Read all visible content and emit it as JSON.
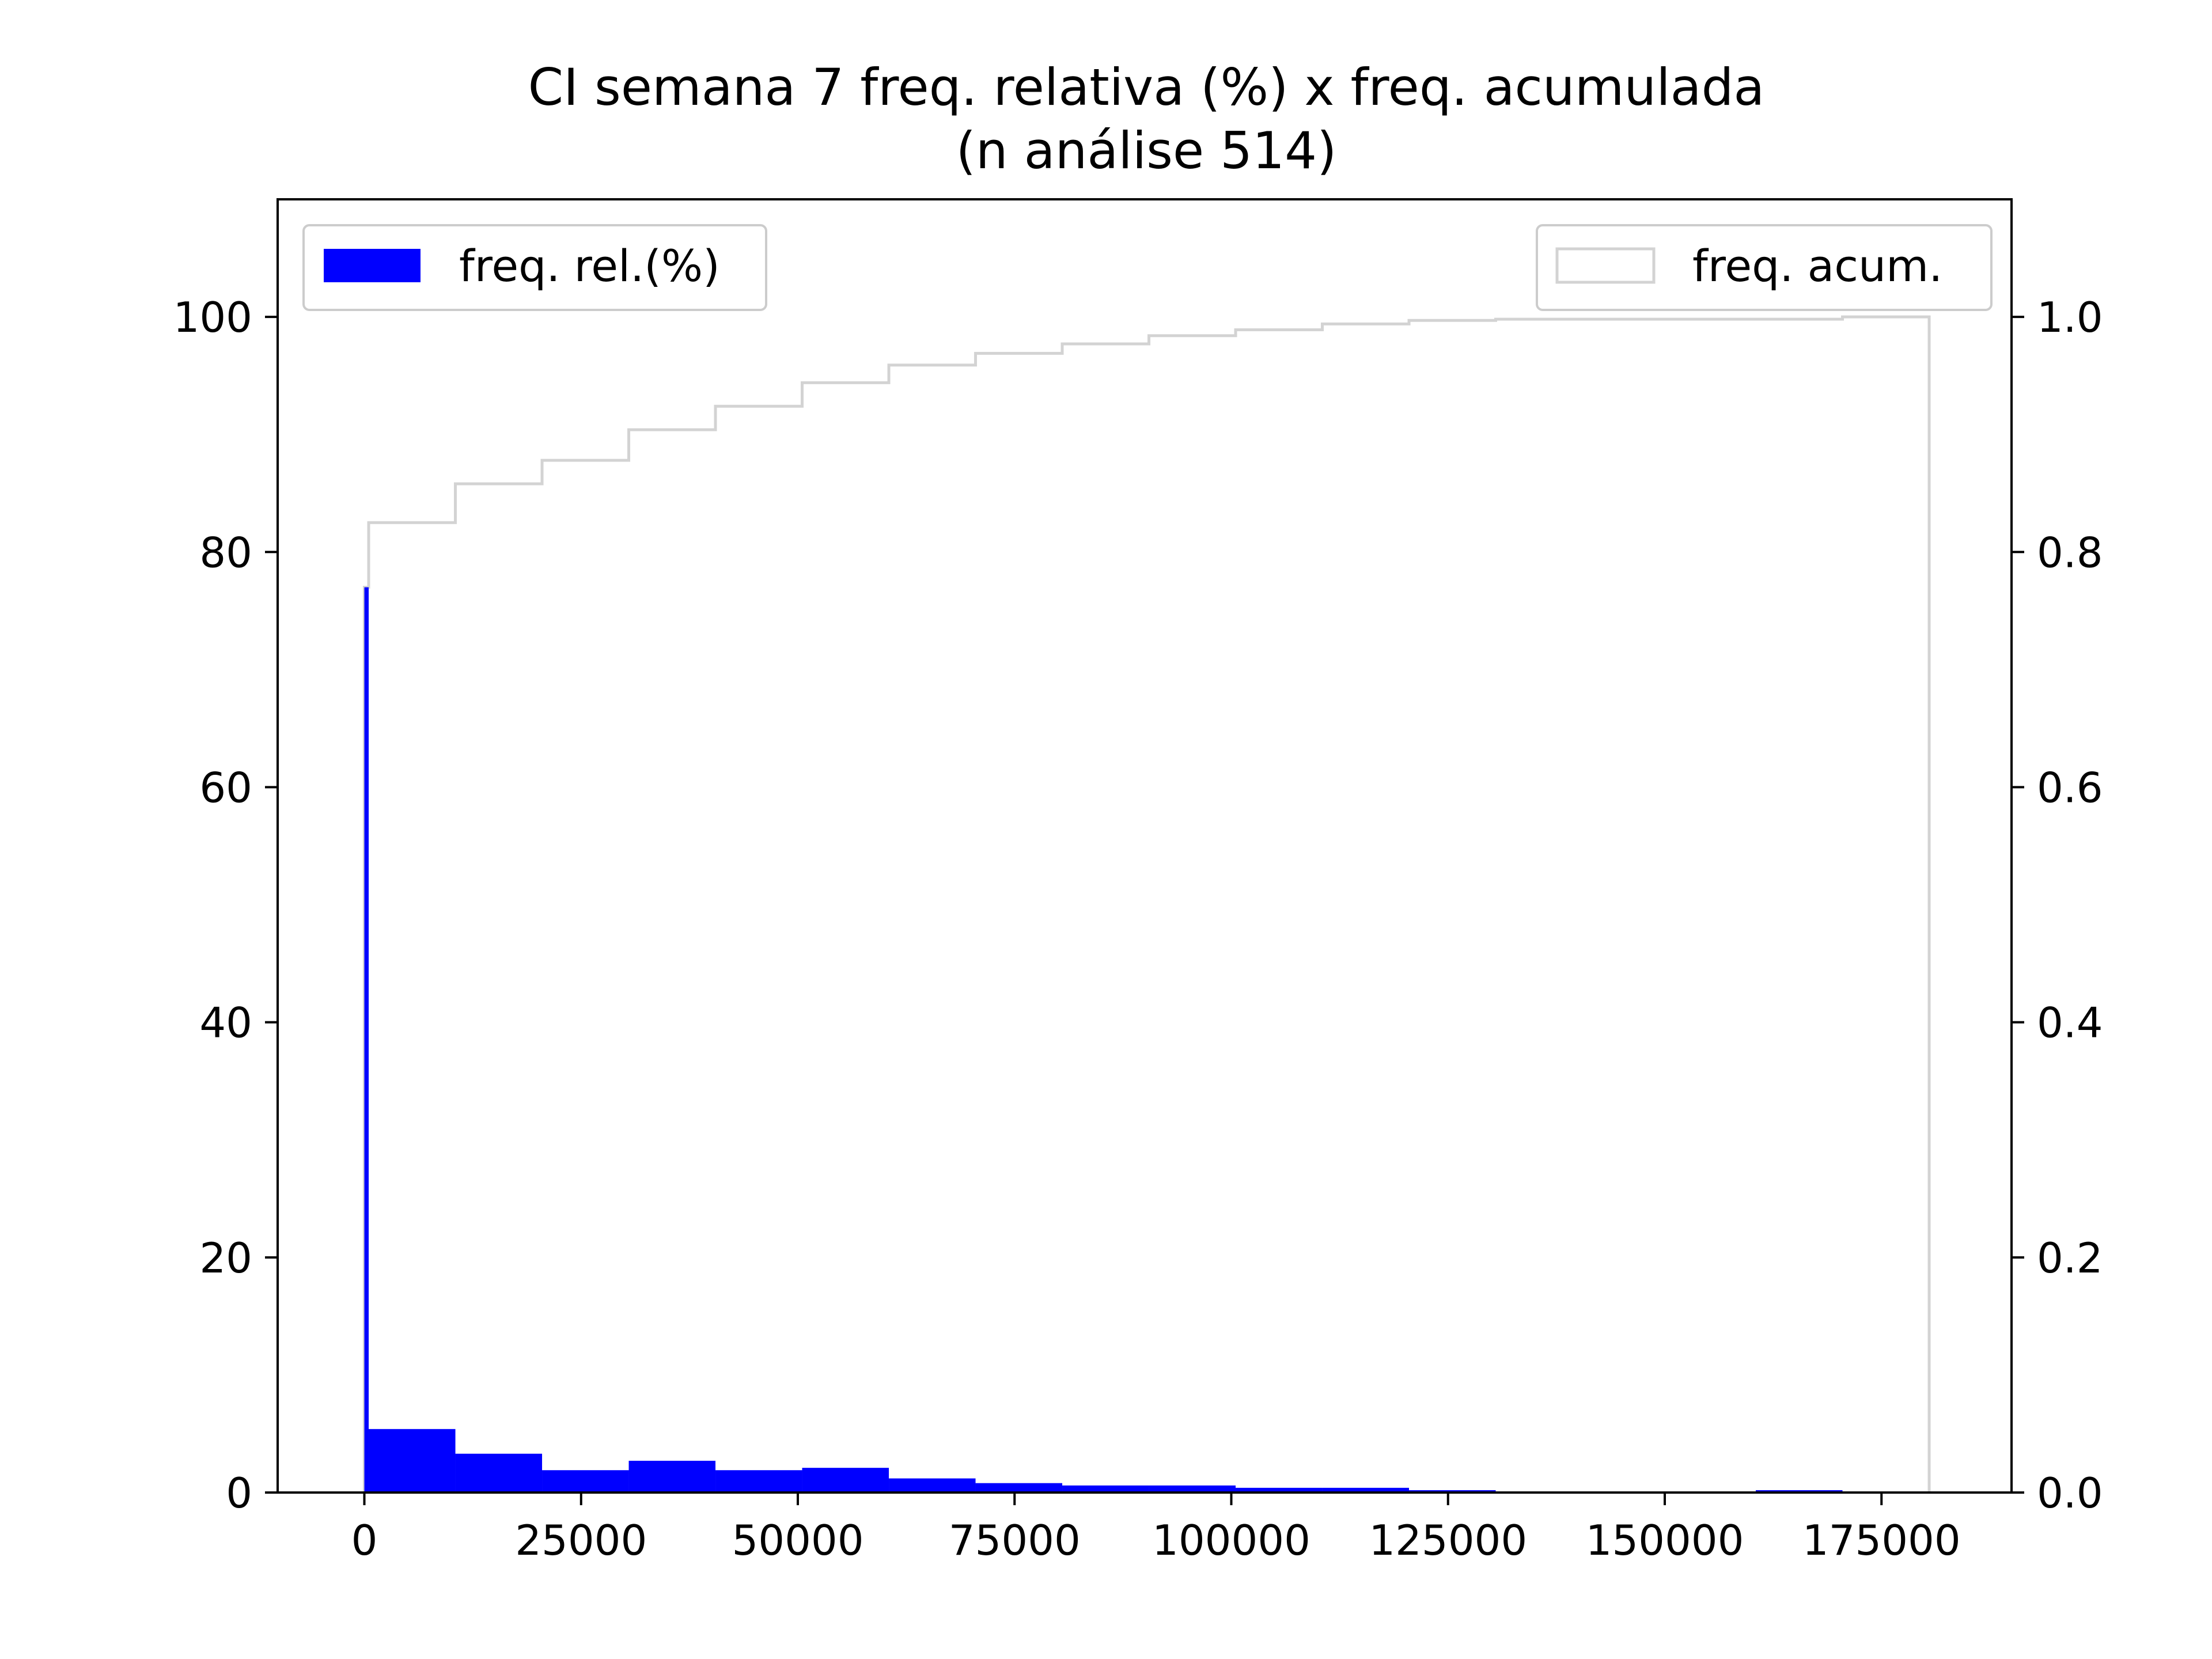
{
  "chart_data": {
    "type": "bar",
    "title": "CI semana 7 freq. relativa (%) x freq. acumulada",
    "subtitle": "(n análise 514)",
    "xlabel": "",
    "ylabel": "",
    "y2label": "",
    "xlim": [
      -10000,
      190000
    ],
    "ylim": [
      0,
      110
    ],
    "y2lim": [
      0,
      1.1
    ],
    "x_ticks": [
      0,
      25000,
      50000,
      75000,
      100000,
      125000,
      150000,
      175000
    ],
    "x_tick_labels": [
      "0",
      "25000",
      "50000",
      "75000",
      "100000",
      "125000",
      "150000",
      "175000"
    ],
    "y_ticks": [
      0,
      20,
      40,
      60,
      80,
      100
    ],
    "y_tick_labels": [
      "0",
      "20",
      "40",
      "60",
      "80",
      "100"
    ],
    "y2_ticks": [
      0.0,
      0.2,
      0.4,
      0.6,
      0.8,
      1.0
    ],
    "y2_tick_labels": [
      "0.0",
      "0.2",
      "0.4",
      "0.6",
      "0.8",
      "1.0"
    ],
    "grid": false,
    "series": [
      {
        "name": "freq. rel.(%)",
        "kind": "histogram-bar",
        "axis": "left",
        "color": "#0000ff",
        "bins": [
          {
            "x0": 0,
            "x1": 500,
            "value": 77.0
          },
          {
            "x0": 500,
            "x1": 10500,
            "value": 5.4
          },
          {
            "x0": 10500,
            "x1": 20500,
            "value": 3.3
          },
          {
            "x0": 20500,
            "x1": 30500,
            "value": 1.9
          },
          {
            "x0": 30500,
            "x1": 40500,
            "value": 2.7
          },
          {
            "x0": 40500,
            "x1": 50500,
            "value": 1.9
          },
          {
            "x0": 50500,
            "x1": 60500,
            "value": 2.1
          },
          {
            "x0": 60500,
            "x1": 70500,
            "value": 1.2
          },
          {
            "x0": 70500,
            "x1": 80500,
            "value": 0.8
          },
          {
            "x0": 80500,
            "x1": 90500,
            "value": 0.6
          },
          {
            "x0": 90500,
            "x1": 100500,
            "value": 0.6
          },
          {
            "x0": 100500,
            "x1": 110500,
            "value": 0.4
          },
          {
            "x0": 110500,
            "x1": 120500,
            "value": 0.4
          },
          {
            "x0": 120500,
            "x1": 130500,
            "value": 0.2
          },
          {
            "x0": 130500,
            "x1": 140500,
            "value": 0.0
          },
          {
            "x0": 140500,
            "x1": 150500,
            "value": 0.0
          },
          {
            "x0": 150500,
            "x1": 160500,
            "value": 0.0
          },
          {
            "x0": 160500,
            "x1": 170500,
            "value": 0.2
          },
          {
            "x0": 170500,
            "x1": 180500,
            "value": 0.0
          }
        ]
      },
      {
        "name": "freq. acum.",
        "kind": "step",
        "axis": "right",
        "color": "#d3d3d3",
        "x": [
          0,
          500,
          10500,
          20500,
          30500,
          40500,
          50500,
          60500,
          70500,
          80500,
          90500,
          100500,
          110500,
          120500,
          130500,
          140500,
          150500,
          160500,
          170500,
          180500
        ],
        "y": [
          0.77,
          0.825,
          0.858,
          0.878,
          0.904,
          0.924,
          0.944,
          0.959,
          0.969,
          0.977,
          0.984,
          0.989,
          0.994,
          0.997,
          0.998,
          0.998,
          0.998,
          0.998,
          1.0,
          1.0
        ]
      }
    ],
    "legends": [
      {
        "position": "top-left",
        "label": "freq. rel.(%)",
        "series": 0
      },
      {
        "position": "top-right",
        "label": "freq. acum.",
        "series": 1
      }
    ]
  }
}
